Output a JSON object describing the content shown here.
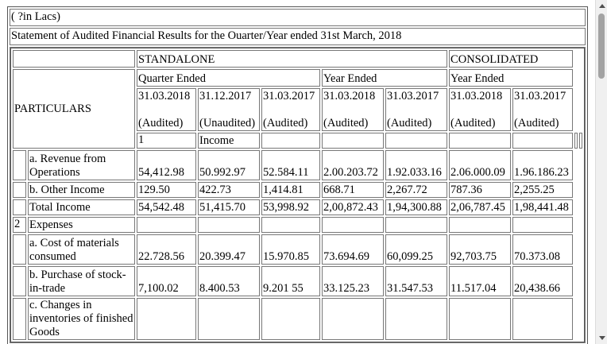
{
  "header": {
    "units": "( ?in Lacs)",
    "title": "Statement of Audited Financial Results for the Ouarter/Year ended 31st March, 2018"
  },
  "columns": {
    "standalone": "STANDALONE",
    "consolidated": "CONSOLIDATED",
    "quarter_ended": "Quarter Ended",
    "year_ended_sa": "Year Ended",
    "year_ended_co": "Year Ended",
    "particulars": "PARTICULARS",
    "dates": [
      "31.03.2018",
      "31.12.2017",
      "31.03.2017",
      "31.03.2018",
      "31.03.2017",
      "31.03.2018",
      "31.03.2017"
    ],
    "status": [
      "(Audited)",
      "(Unaudited)",
      "(Audited)",
      "(Audited)",
      "(Audited)",
      "(Audited)",
      "(Audited)"
    ]
  },
  "rows": [
    {
      "num": "1",
      "label": "Income",
      "values": [
        "",
        "",
        "",
        "",
        "",
        "",
        ""
      ]
    },
    {
      "num": "",
      "label": "a. Revenue from Operations",
      "values": [
        "54,412.98",
        "50.992.97",
        "52.584.11",
        "2.00.203.72",
        "1.92.033.16",
        "2.06.000.09",
        "1.96.186.23"
      ]
    },
    {
      "num": "",
      "label": "b. Other Income",
      "values": [
        "129.50",
        "422.73",
        "1,414.81",
        "668.71",
        "2,267.72",
        "787.36",
        "2,255.25"
      ]
    },
    {
      "num": "",
      "label": "Total Income",
      "values": [
        "54,542.48",
        "51,415.70",
        "53,998.92",
        "2,00,872.43",
        "1,94,300.88",
        "2,06,787.45",
        "1,98,441.48"
      ]
    },
    {
      "num": "2",
      "label": "Expenses",
      "values": [
        "",
        "",
        "",
        "",
        "",
        "",
        ""
      ]
    },
    {
      "num": "",
      "label": "a. Cost of materials consumed",
      "values": [
        "22.728.56",
        "20.399.47",
        "15.970.85",
        "73.694.69",
        "60,099.25",
        "92,703.75",
        "70.373.08"
      ]
    },
    {
      "num": "",
      "label": "b. Purchase of stock-in-trade",
      "values": [
        "7,100.02",
        "8.400.53",
        "9.201 55",
        "33.125.23",
        "31.547.53",
        "11.517.04",
        "20,438.66"
      ]
    },
    {
      "num": "",
      "label": "c. Changes in inventories of finished Goods",
      "values": [
        "",
        "",
        "",
        "",
        "",
        "",
        ""
      ]
    }
  ]
}
